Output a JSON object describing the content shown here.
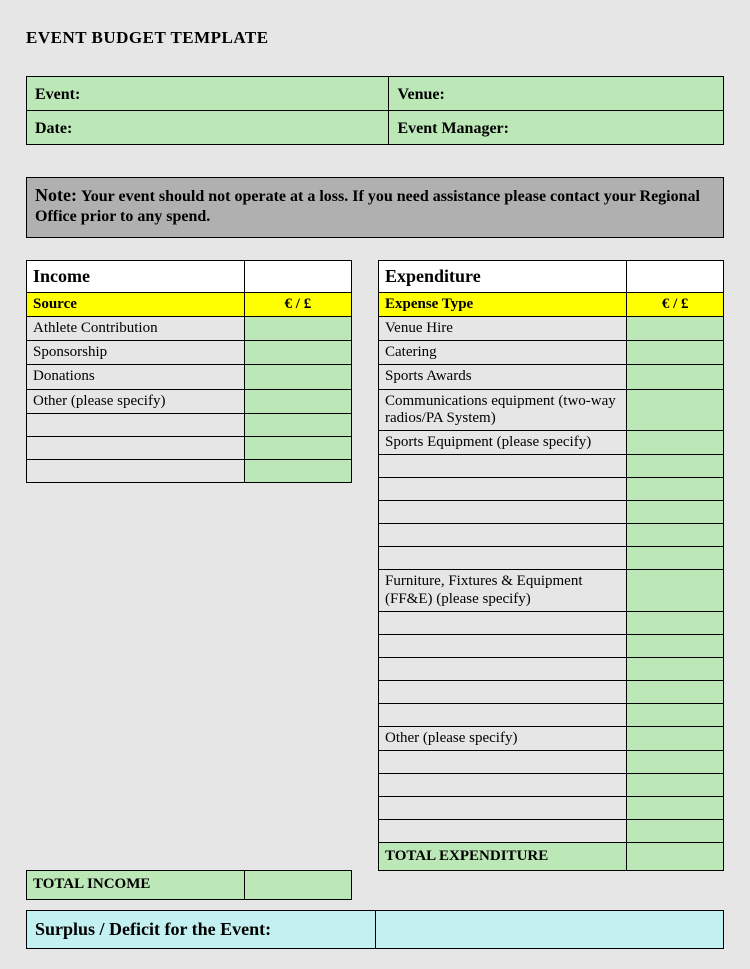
{
  "title": "EVENT BUDGET TEMPLATE",
  "colors": {
    "page_bg": "#e6e6e6",
    "green_fill": "#bce7b7",
    "yellow_fill": "#ffff00",
    "gray_note": "#b0b0b0",
    "cyan_fill": "#c3f0f0",
    "border": "#000000"
  },
  "header": {
    "event_label": "Event:",
    "venue_label": "Venue:",
    "date_label": "Date:",
    "manager_label": "Event Manager:"
  },
  "note": {
    "label": "Note:",
    "text": "Your event should not operate at a loss.  If you need assistance please contact your Regional Office prior to any spend."
  },
  "income": {
    "section_title": "Income",
    "source_header": "Source",
    "amount_header": "€ / £",
    "rows": [
      {
        "label": "Athlete Contribution",
        "value": ""
      },
      {
        "label": "Sponsorship",
        "value": ""
      },
      {
        "label": "Donations",
        "value": ""
      },
      {
        "label": "Other (please specify)",
        "value": ""
      },
      {
        "label": "",
        "value": ""
      },
      {
        "label": "",
        "value": ""
      },
      {
        "label": "",
        "value": ""
      }
    ],
    "total_label": "TOTAL INCOME",
    "total_value": ""
  },
  "expenditure": {
    "section_title": "Expenditure",
    "type_header": "Expense Type",
    "amount_header": "€ / £",
    "rows": [
      {
        "label": "Venue Hire",
        "value": ""
      },
      {
        "label": "Catering",
        "value": ""
      },
      {
        "label": "Sports Awards",
        "value": ""
      },
      {
        "label": "Communications equipment (two-way radios/PA System)",
        "value": ""
      },
      {
        "label": "Sports Equipment (please specify)",
        "value": ""
      },
      {
        "label": "",
        "value": ""
      },
      {
        "label": "",
        "value": ""
      },
      {
        "label": "",
        "value": ""
      },
      {
        "label": "",
        "value": ""
      },
      {
        "label": "",
        "value": ""
      },
      {
        "label": "Furniture, Fixtures & Equipment (FF&E) (please specify)",
        "value": ""
      },
      {
        "label": "",
        "value": ""
      },
      {
        "label": "",
        "value": ""
      },
      {
        "label": "",
        "value": ""
      },
      {
        "label": "",
        "value": ""
      },
      {
        "label": "",
        "value": ""
      },
      {
        "label": "Other (please specify)",
        "value": ""
      },
      {
        "label": "",
        "value": ""
      },
      {
        "label": "",
        "value": ""
      },
      {
        "label": "",
        "value": ""
      },
      {
        "label": "",
        "value": ""
      }
    ],
    "total_label": "TOTAL EXPENDITURE",
    "total_value": ""
  },
  "surplus": {
    "label": "Surplus / Deficit for the Event:",
    "value": ""
  }
}
